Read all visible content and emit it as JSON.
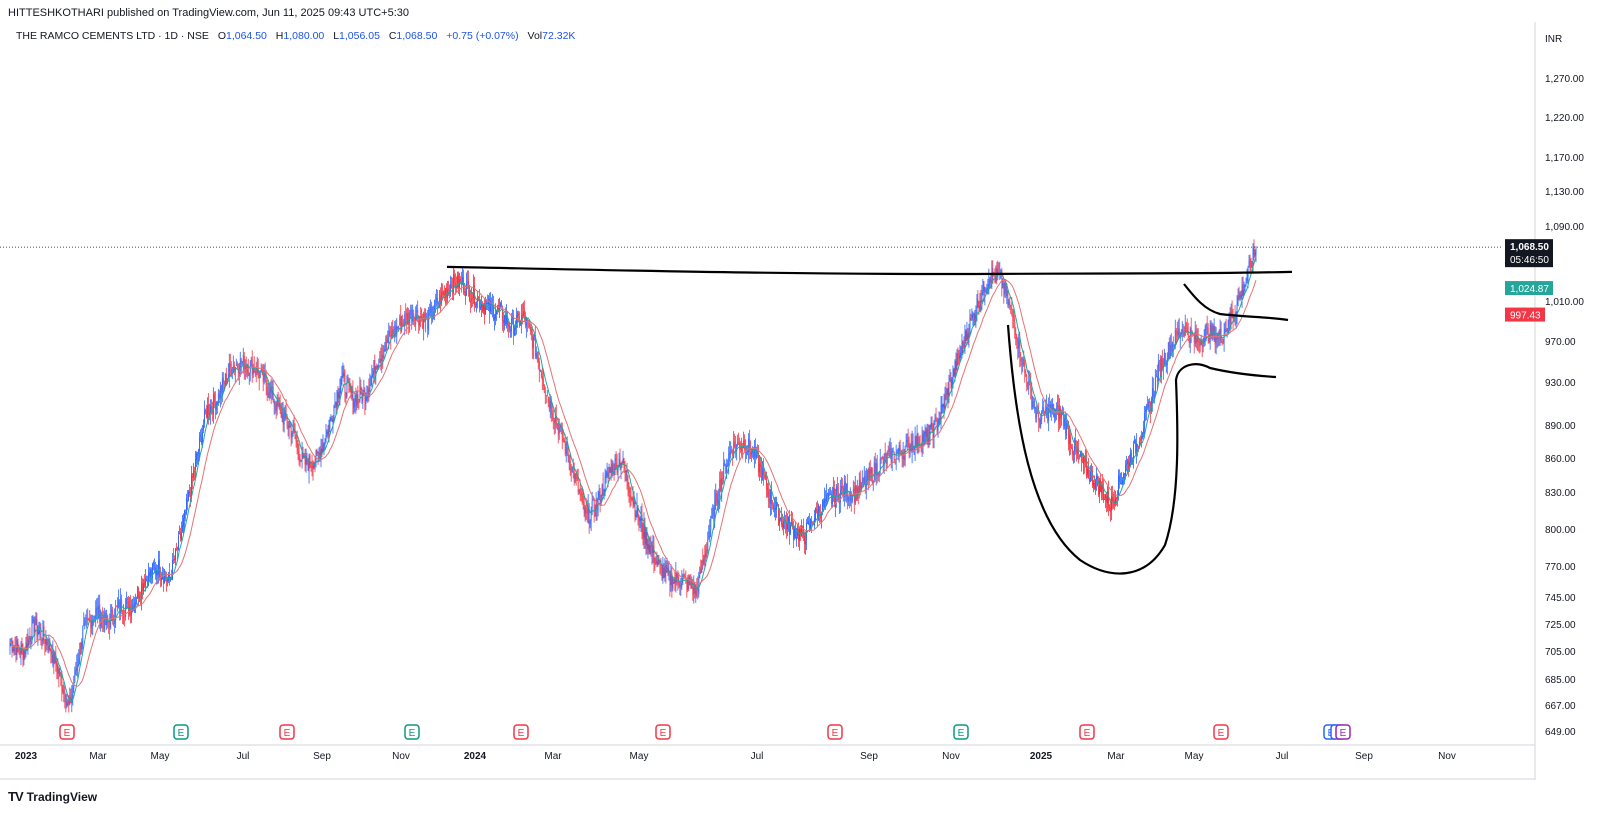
{
  "header": {
    "publisher": "HITTESHKOTHARI published on TradingView.com, Jun 11, 2025 09:43 UTC+5:30"
  },
  "legend": {
    "symbol": "THE RAMCO CEMENTS LTD · 1D · NSE",
    "open_label": "O",
    "open": "1,064.50",
    "high_label": "H",
    "high": "1,080.00",
    "low_label": "L",
    "low": "1,056.05",
    "close_label": "C",
    "close": "1,068.50",
    "change": "+0.75 (+0.07%)",
    "vol_label": "Vol",
    "vol": "72.32K"
  },
  "colors": {
    "up": "#2962ff",
    "down": "#f23645",
    "ma_fast": "#26a69a",
    "ma_slow": "#e57373",
    "drawing": "#000000",
    "grid": "#e0e3eb"
  },
  "chart_data": {
    "type": "candlestick",
    "currency": "INR",
    "y_ticks": [
      1270,
      1220,
      1170,
      1130,
      1090,
      1010,
      970,
      930,
      890,
      860,
      830,
      800,
      770,
      745,
      725,
      705,
      685,
      667,
      649
    ],
    "y_tick_labels": [
      "1,270.00",
      "1,220.00",
      "1,170.00",
      "1,130.00",
      "1,090.00",
      "1,010.00",
      "970.00",
      "930.00",
      "890.00",
      "860.00",
      "830.00",
      "800.00",
      "770.00",
      "745.00",
      "725.00",
      "705.00",
      "685.00",
      "667.00",
      "649.00"
    ],
    "x_ticks": [
      "2023",
      "Mar",
      "May",
      "Jul",
      "Sep",
      "Nov",
      "2024",
      "Mar",
      "May",
      "Jul",
      "Sep",
      "Nov",
      "2025",
      "Mar",
      "May",
      "Jul",
      "Sep",
      "Nov"
    ],
    "last_price": {
      "value": 1068.5,
      "label": "1,068.50",
      "countdown": "05:46:50"
    },
    "ma_fast_last": {
      "value": 1024.87,
      "label": "1,024.87"
    },
    "ma_slow_last": {
      "value": 997.43,
      "label": "997.43"
    },
    "price_path": [
      [
        0,
        712
      ],
      [
        5,
        705
      ],
      [
        9,
        725
      ],
      [
        14,
        712
      ],
      [
        18,
        690
      ],
      [
        22,
        665
      ],
      [
        27,
        720
      ],
      [
        32,
        735
      ],
      [
        36,
        725
      ],
      [
        41,
        740
      ],
      [
        45,
        738
      ],
      [
        50,
        760
      ],
      [
        55,
        770
      ],
      [
        59,
        758
      ],
      [
        64,
        800
      ],
      [
        68,
        845
      ],
      [
        73,
        905
      ],
      [
        77,
        915
      ],
      [
        82,
        945
      ],
      [
        86,
        950
      ],
      [
        91,
        945
      ],
      [
        95,
        930
      ],
      [
        100,
        905
      ],
      [
        105,
        885
      ],
      [
        109,
        855
      ],
      [
        114,
        860
      ],
      [
        118,
        885
      ],
      [
        123,
        935
      ],
      [
        127,
        915
      ],
      [
        132,
        920
      ],
      [
        136,
        950
      ],
      [
        141,
        975
      ],
      [
        145,
        988
      ],
      [
        150,
        1000
      ],
      [
        155,
        990
      ],
      [
        159,
        1010
      ],
      [
        164,
        1030
      ],
      [
        168,
        1030
      ],
      [
        173,
        1015
      ],
      [
        177,
        1005
      ],
      [
        182,
        1000
      ],
      [
        186,
        985
      ],
      [
        191,
        995
      ],
      [
        195,
        965
      ],
      [
        200,
        915
      ],
      [
        205,
        880
      ],
      [
        209,
        850
      ],
      [
        214,
        810
      ],
      [
        218,
        820
      ],
      [
        223,
        850
      ],
      [
        227,
        860
      ],
      [
        232,
        820
      ],
      [
        236,
        795
      ],
      [
        241,
        770
      ],
      [
        245,
        760
      ],
      [
        250,
        760
      ],
      [
        255,
        750
      ],
      [
        259,
        790
      ],
      [
        264,
        840
      ],
      [
        268,
        870
      ],
      [
        273,
        875
      ],
      [
        277,
        862
      ],
      [
        282,
        830
      ],
      [
        286,
        810
      ],
      [
        291,
        800
      ],
      [
        295,
        795
      ],
      [
        300,
        815
      ],
      [
        305,
        825
      ],
      [
        309,
        832
      ],
      [
        314,
        830
      ],
      [
        318,
        840
      ],
      [
        323,
        855
      ],
      [
        327,
        862
      ],
      [
        332,
        868
      ],
      [
        336,
        875
      ],
      [
        341,
        880
      ],
      [
        345,
        895
      ],
      [
        350,
        935
      ],
      [
        355,
        975
      ],
      [
        359,
        1005
      ],
      [
        364,
        1040
      ],
      [
        368,
        1035
      ],
      [
        373,
        990
      ],
      [
        377,
        940
      ],
      [
        382,
        895
      ],
      [
        386,
        905
      ],
      [
        391,
        900
      ],
      [
        395,
        870
      ],
      [
        400,
        850
      ],
      [
        405,
        835
      ],
      [
        409,
        820
      ],
      [
        414,
        850
      ],
      [
        418,
        870
      ],
      [
        423,
        905
      ],
      [
        427,
        945
      ],
      [
        432,
        970
      ],
      [
        436,
        985
      ],
      [
        441,
        970
      ],
      [
        445,
        980
      ],
      [
        450,
        975
      ],
      [
        455,
        1002
      ],
      [
        459,
        1030
      ],
      [
        463,
        1068.5
      ]
    ],
    "annotations": [
      {
        "type": "resistance-line",
        "value": 1040
      },
      {
        "type": "cup-and-handle"
      }
    ],
    "earnings_markers": [
      "E",
      "E",
      "E",
      "E",
      "E",
      "E",
      "E",
      "E",
      "E",
      "E",
      "E",
      "E",
      "E"
    ]
  },
  "brand": {
    "logo": "TV",
    "name": "TradingView"
  }
}
